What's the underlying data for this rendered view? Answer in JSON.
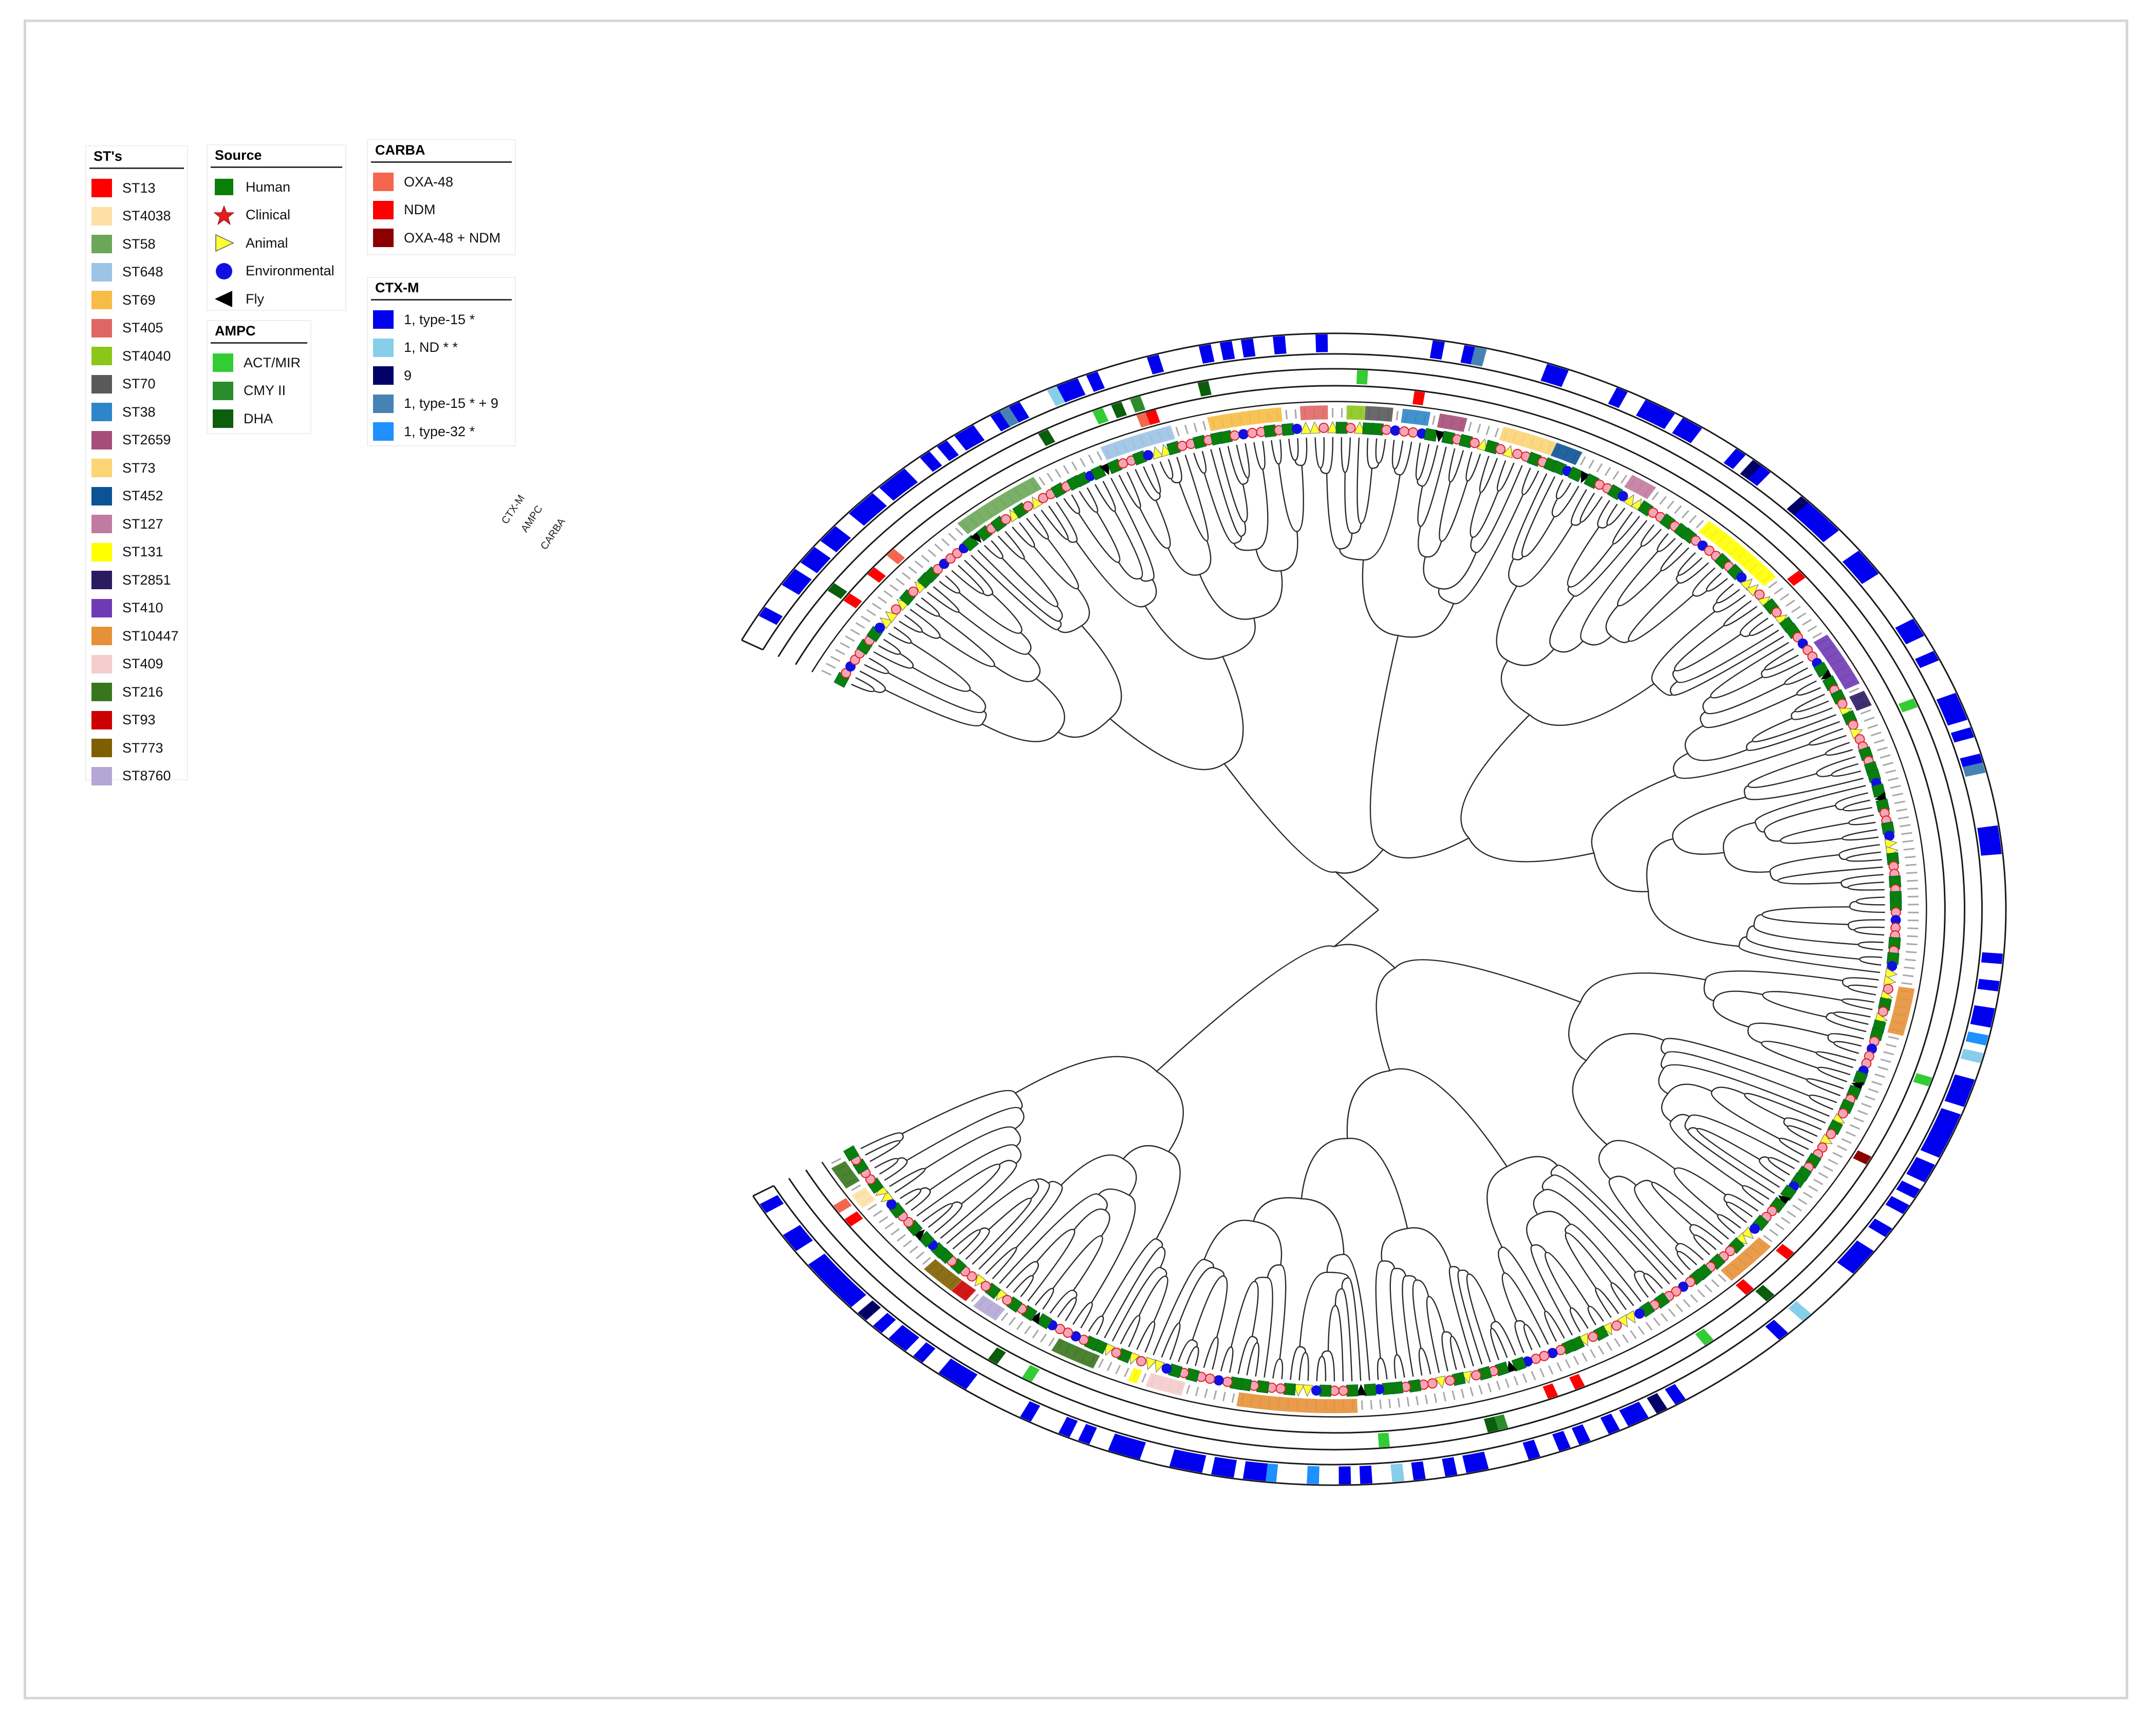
{
  "legends": {
    "st": {
      "title": "ST's",
      "items": [
        {
          "label": "ST13",
          "color": "#ff0000"
        },
        {
          "label": "ST4038",
          "color": "#fde0a6"
        },
        {
          "label": "ST58",
          "color": "#6ba757"
        },
        {
          "label": "ST648",
          "color": "#9dc3e6"
        },
        {
          "label": "ST69",
          "color": "#f6bc45"
        },
        {
          "label": "ST405",
          "color": "#e06666"
        },
        {
          "label": "ST4040",
          "color": "#8cc61a"
        },
        {
          "label": "ST70",
          "color": "#595959"
        },
        {
          "label": "ST38",
          "color": "#2e86c9"
        },
        {
          "label": "ST2659",
          "color": "#a64d79"
        },
        {
          "label": "ST73",
          "color": "#fcd475"
        },
        {
          "label": "ST452",
          "color": "#0b5394"
        },
        {
          "label": "ST127",
          "color": "#c27ba0"
        },
        {
          "label": "ST131",
          "color": "#ffff00"
        },
        {
          "label": "ST2851",
          "color": "#2b1b60"
        },
        {
          "label": "ST410",
          "color": "#6f3ab5"
        },
        {
          "label": "ST10447",
          "color": "#e69138"
        },
        {
          "label": "ST409",
          "color": "#f4cccc"
        },
        {
          "label": "ST216",
          "color": "#38761d"
        },
        {
          "label": "ST93",
          "color": "#cc0000"
        },
        {
          "label": "ST773",
          "color": "#7f6000"
        },
        {
          "label": "ST8760",
          "color": "#b4a7d6"
        }
      ]
    },
    "source": {
      "title": "Source",
      "items": [
        {
          "label": "Human",
          "shape": "square",
          "color": "#0a7f0a"
        },
        {
          "label": "Clinical",
          "shape": "star",
          "color": "#e02020"
        },
        {
          "label": "Animal",
          "shape": "triangle-right",
          "color": "#ffff33"
        },
        {
          "label": "Environmental",
          "shape": "circle",
          "color": "#1010e0"
        },
        {
          "label": "Fly",
          "shape": "triangle-left",
          "color": "#000000"
        }
      ]
    },
    "ampc": {
      "title": "AMPC",
      "items": [
        {
          "label": "ACT/MIR",
          "color": "#33cc33"
        },
        {
          "label": "CMY II",
          "color": "#2b8c2b"
        },
        {
          "label": "DHA",
          "color": "#0b5e0b"
        }
      ]
    },
    "carba": {
      "title": "CARBA",
      "items": [
        {
          "label": "OXA-48",
          "color": "#f4664d"
        },
        {
          "label": "NDM",
          "color": "#ff0000"
        },
        {
          "label": "OXA-48 + NDM",
          "color": "#8b0000"
        }
      ]
    },
    "ctxm": {
      "title": "CTX-M",
      "items": [
        {
          "label": "1, type-15 *",
          "color": "#0000ee"
        },
        {
          "label": "1, ND * *",
          "color": "#87ceeb"
        },
        {
          "label": "9",
          "color": "#000066"
        },
        {
          "label": "1, type-15 * + 9",
          "color": "#4682b4"
        },
        {
          "label": "1, type-32 *",
          "color": "#1e90ff"
        }
      ]
    }
  },
  "ring_labels": {
    "ctxm": "CTX-M",
    "ampc": "AMPC",
    "carba": "CARBA"
  },
  "chart_data": {
    "type": "circular-phylogenetic-tree",
    "title": "",
    "rings_inner_to_outer": [
      "Source",
      "ST",
      "CARBA",
      "AMPC",
      "CTX-M"
    ],
    "isolate_count_estimate": 330,
    "arc_start_angle_deg": 208,
    "arc_end_angle_deg": 510,
    "st_segments": [
      {
        "st": "ST58",
        "start": 24,
        "end": 34
      },
      {
        "st": "ST648",
        "start": 42,
        "end": 50
      },
      {
        "st": "ST69",
        "start": 54,
        "end": 62
      },
      {
        "st": "ST405",
        "start": 64,
        "end": 67
      },
      {
        "st": "ST4040",
        "start": 69,
        "end": 71
      },
      {
        "st": "ST70",
        "start": 71,
        "end": 74
      },
      {
        "st": "ST38",
        "start": 75,
        "end": 78
      },
      {
        "st": "ST2659",
        "start": 79,
        "end": 82
      },
      {
        "st": "ST73",
        "start": 86,
        "end": 92
      },
      {
        "st": "ST452",
        "start": 92,
        "end": 95
      },
      {
        "st": "ST127",
        "start": 101,
        "end": 104
      },
      {
        "st": "ST131",
        "start": 111,
        "end": 121
      },
      {
        "st": "ST410",
        "start": 130,
        "end": 137
      },
      {
        "st": "ST2851",
        "start": 138,
        "end": 140
      },
      {
        "st": "ST10447",
        "start": 176,
        "end": 182
      },
      {
        "st": "ST10447",
        "start": 212,
        "end": 218
      },
      {
        "st": "ST10447",
        "start": 262,
        "end": 275
      },
      {
        "st": "ST409",
        "start": 281,
        "end": 285
      },
      {
        "st": "ST131",
        "start": 286,
        "end": 287
      },
      {
        "st": "ST216",
        "start": 291,
        "end": 296
      },
      {
        "st": "ST8760",
        "start": 303,
        "end": 306
      },
      {
        "st": "ST93",
        "start": 307,
        "end": 309
      },
      {
        "st": "ST773",
        "start": 309,
        "end": 313
      },
      {
        "st": "ST4038",
        "start": 323,
        "end": 325
      },
      {
        "st": "ST216",
        "start": 326,
        "end": 329
      }
    ],
    "carba_segments": [
      {
        "type": "NDM",
        "pos": 9
      },
      {
        "type": "NDM",
        "pos": 13
      },
      {
        "type": "OXA-48",
        "pos": 16
      },
      {
        "type": "OXA-48",
        "pos": 47
      },
      {
        "type": "NDM",
        "pos": 48
      },
      {
        "type": "NDM",
        "pos": 76
      },
      {
        "type": "NDM",
        "pos": 122
      },
      {
        "type": "OXA-48 + NDM",
        "pos": 197
      },
      {
        "type": "NDM",
        "pos": 211
      },
      {
        "type": "NDM",
        "pos": 217
      },
      {
        "type": "NDM",
        "pos": 238
      },
      {
        "type": "NDM",
        "pos": 241
      },
      {
        "type": "NDM",
        "pos": 322
      },
      {
        "type": "OXA-48",
        "pos": 324
      }
    ],
    "ampc_segments": [
      {
        "type": "DHA",
        "pos": 9
      },
      {
        "type": "DHA",
        "pos": 37
      },
      {
        "type": "ACT/MIR",
        "pos": 43
      },
      {
        "type": "DHA",
        "pos": 45
      },
      {
        "type": "CMY II",
        "pos": 47
      },
      {
        "type": "DHA",
        "pos": 54
      },
      {
        "type": "ACT/MIR",
        "pos": 70
      },
      {
        "type": "ACT/MIR",
        "pos": 141
      },
      {
        "type": "ACT/MIR",
        "pos": 186
      },
      {
        "type": "DHA",
        "pos": 216
      },
      {
        "type": "ACT/MIR",
        "pos": 224
      },
      {
        "type": "CMY II",
        "pos": 247
      },
      {
        "type": "DHA",
        "pos": 248
      },
      {
        "type": "ACT/MIR",
        "pos": 259
      },
      {
        "type": "ACT/MIR",
        "pos": 296
      },
      {
        "type": "DHA",
        "pos": 300
      }
    ],
    "ctxm_segments": [
      {
        "type": "1, type-15 * + 9",
        "pos": 35
      },
      {
        "type": "1, ND * *",
        "pos": 40
      },
      {
        "type": "1, type-15 * + 9",
        "pos": 81
      },
      {
        "type": "9",
        "pos": 110
      },
      {
        "type": "9",
        "pos": 116
      },
      {
        "type": "1, type-15 * + 9",
        "pos": 150
      },
      {
        "type": "1, type-32 *",
        "pos": 180
      },
      {
        "type": "1, ND * *",
        "pos": 182
      },
      {
        "type": "1, ND * *",
        "pos": 215
      },
      {
        "type": "1, type-32 *",
        "pos": 270
      },
      {
        "type": "9",
        "pos": 232
      },
      {
        "type": "9",
        "pos": 313
      },
      {
        "type": "1, type-32 *",
        "pos": 266
      },
      {
        "type": "1, ND * *",
        "pos": 258
      }
    ]
  }
}
